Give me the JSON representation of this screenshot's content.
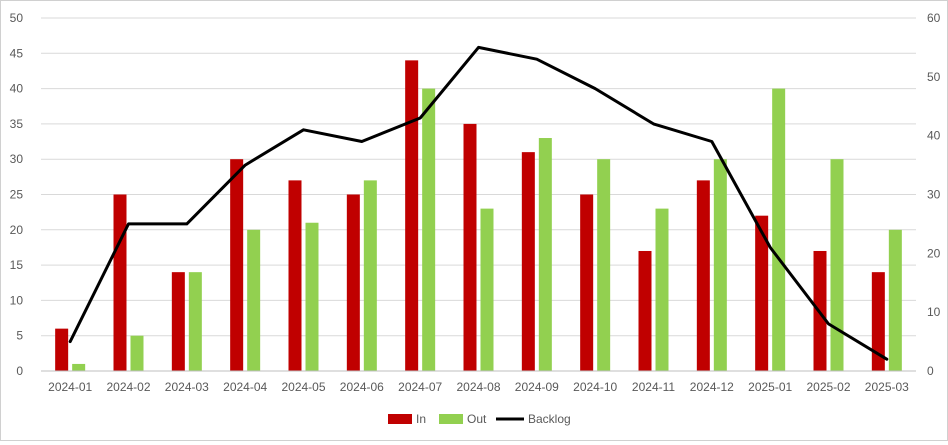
{
  "chart_data": {
    "type": "bar",
    "categories": [
      "2024-01",
      "2024-02",
      "2024-03",
      "2024-04",
      "2024-05",
      "2024-06",
      "2024-07",
      "2024-08",
      "2024-09",
      "2024-10",
      "2024-11",
      "2024-12",
      "2025-01",
      "2025-02",
      "2025-03"
    ],
    "series": [
      {
        "name": "In",
        "type": "bar",
        "axis": "left",
        "color": "#C00000",
        "values": [
          6,
          25,
          14,
          30,
          27,
          25,
          44,
          35,
          31,
          25,
          17,
          27,
          22,
          17,
          14
        ]
      },
      {
        "name": "Out",
        "type": "bar",
        "axis": "left",
        "color": "#92D050",
        "values": [
          1,
          5,
          14,
          20,
          21,
          27,
          40,
          23,
          33,
          30,
          23,
          30,
          40,
          30,
          20
        ]
      },
      {
        "name": "Backlog",
        "type": "line",
        "axis": "right",
        "color": "#000000",
        "values": [
          5,
          25,
          25,
          35,
          41,
          39,
          43,
          55,
          53,
          48,
          42,
          39,
          21,
          8,
          2
        ]
      }
    ],
    "y_left": {
      "min": 0,
      "max": 50,
      "step": 5,
      "ticks": [
        "0",
        "5",
        "10",
        "15",
        "20",
        "25",
        "30",
        "35",
        "40",
        "45",
        "50"
      ]
    },
    "y_right": {
      "min": 0,
      "max": 60,
      "step": 10,
      "ticks": [
        "0",
        "10",
        "20",
        "30",
        "40",
        "50",
        "60"
      ]
    },
    "title": "",
    "xlabel": "",
    "ylabel": "",
    "grid": true,
    "legend_position": "bottom-center"
  }
}
